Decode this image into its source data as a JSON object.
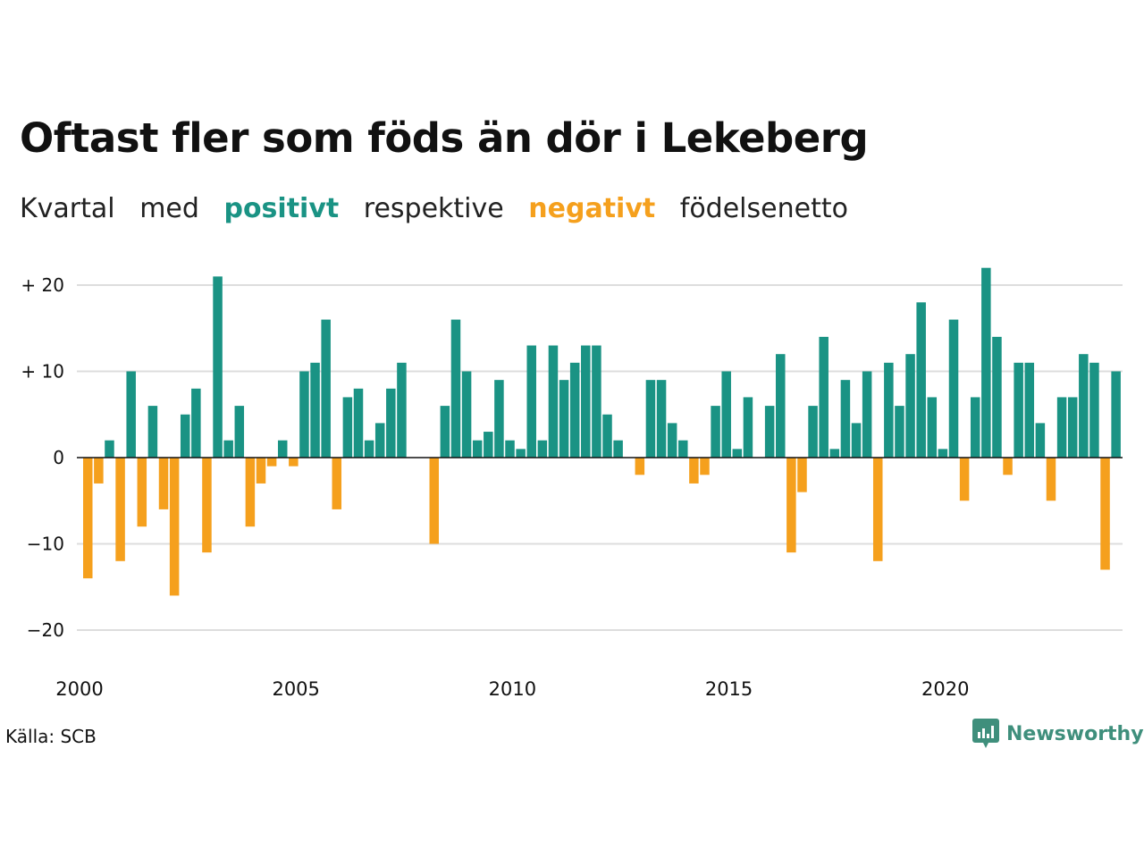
{
  "title": "Oftast fler som föds än dör i Lekeberg",
  "subtitle": {
    "part1": "Kvartal",
    "part2": "med",
    "positive_word": "positivt",
    "part3": "respektive",
    "negative_word": "negativt",
    "part4": "födelsenetto"
  },
  "source": "Källa: SCB",
  "brand": {
    "name": "Newsworthy",
    "icon": "newsworthy-logo-icon"
  },
  "colors": {
    "positive": "#1a9384",
    "negative": "#f5a01d",
    "grid": "#dddddd",
    "axis": "#111111"
  },
  "chart_data": {
    "type": "bar",
    "x_start_year": 2000,
    "periods_per_year": 4,
    "xticks": [
      "2000",
      "2005",
      "2010",
      "2015",
      "2020"
    ],
    "yticks": [
      {
        "value": 20,
        "label": "+ 20"
      },
      {
        "value": 10,
        "label": "+ 10"
      },
      {
        "value": 0,
        "label": "0"
      },
      {
        "value": -10,
        "label": "−10"
      },
      {
        "value": -20,
        "label": "−20"
      }
    ],
    "ylim": [
      -22,
      22
    ],
    "grid": true,
    "values": [
      -14,
      -3,
      2,
      -12,
      10,
      -8,
      6,
      -6,
      -16,
      5,
      8,
      -11,
      21,
      2,
      6,
      -8,
      -3,
      -1,
      2,
      -1,
      10,
      11,
      16,
      -6,
      7,
      8,
      2,
      4,
      8,
      11,
      0,
      0,
      -10,
      6,
      16,
      10,
      2,
      3,
      9,
      2,
      1,
      13,
      2,
      13,
      9,
      11,
      13,
      13,
      5,
      2,
      0,
      -2,
      9,
      9,
      4,
      2,
      -3,
      -2,
      6,
      10,
      1,
      7,
      0,
      6,
      12,
      -11,
      -4,
      6,
      14,
      1,
      9,
      4,
      10,
      -12,
      11,
      6,
      12,
      18,
      7,
      1,
      16,
      -5,
      7,
      22,
      14,
      -2,
      11,
      11,
      4,
      -5,
      7,
      7,
      12,
      11,
      -13,
      10
    ]
  }
}
